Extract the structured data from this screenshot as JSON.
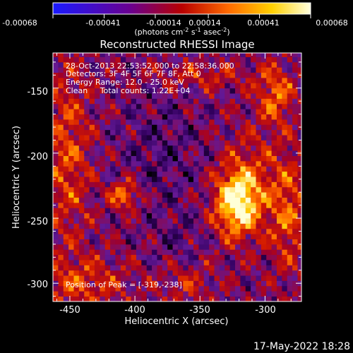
{
  "colorbar": {
    "ticks": [
      "-0.00068",
      "-0.00041",
      "-0.00014",
      "0.00014",
      "0.00041",
      "0.00068"
    ],
    "tick_values": [
      -0.00068,
      -0.00041,
      -0.00014,
      0.00014,
      0.00041,
      0.00068
    ],
    "range": [
      -0.00068,
      0.00068
    ],
    "units_main": "(photons cm",
    "units_exp1": "-2",
    "units_mid1": " s",
    "units_exp2": "-1",
    "units_mid2": " asec",
    "units_exp3": "-2",
    "units_end": ")",
    "colors": [
      "#1a1aff",
      "#6a0090",
      "#b80000",
      "#ff6a00",
      "#ffd000",
      "#ffffe0"
    ]
  },
  "chart_data": {
    "type": "heatmap",
    "title": "Reconstructed RHESSI Image",
    "xlabel": "Heliocentric X (arcsec)",
    "ylabel": "Heliocentric Y (arcsec)",
    "xlim": [
      -463,
      -272
    ],
    "ylim": [
      -314,
      -123
    ],
    "xticks": [
      -450,
      -400,
      -350,
      -300
    ],
    "yticks": [
      -150,
      -200,
      -250,
      -300
    ],
    "xtick_labels": [
      "-450",
      "-400",
      "-350",
      "-300"
    ],
    "ytick_labels": [
      "-150",
      "-200",
      "-250",
      "-300"
    ],
    "peak_position": [
      -319,
      -238
    ],
    "colormap": "rhessi-thermal",
    "annotations": {
      "time_range": "28-Oct-2013 22:53:52.000 to 22:58:36.000",
      "detectors": "Detectors: 3F 4F 5F 6F 7F 8F, Att 0",
      "energy": "Energy Range: 12.0 - 25.0 keV",
      "clean": "Clean     Total counts: 1.22E+04",
      "peak": "Position of Peak = [-319,-238]"
    }
  },
  "footer": {
    "date": "17-May-2022 18:28"
  }
}
